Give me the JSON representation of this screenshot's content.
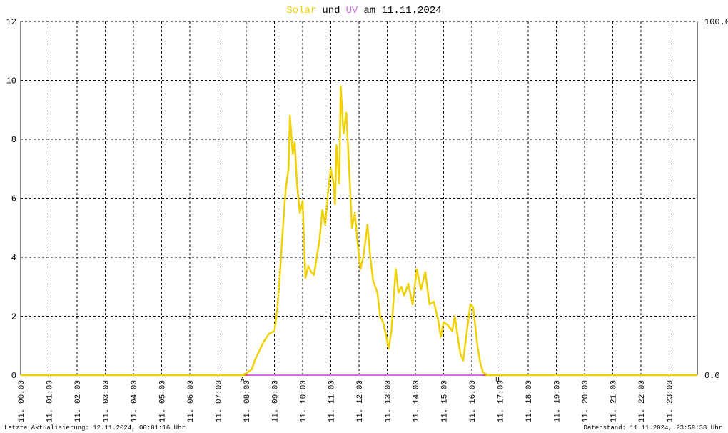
{
  "chart_data": {
    "type": "line",
    "title": [
      "und",
      "am 11.11.2024"
    ],
    "footer_left": "Letzte Aktualisierung: 12.11.2024, 00:01:16 Uhr",
    "footer_right": "Datenstand: 11.11.2024, 23:59:38 Uhr",
    "x": [
      0,
      7.9,
      8.05,
      8.2,
      8.3,
      8.45,
      8.6,
      8.8,
      9.0,
      9.1,
      9.2,
      9.3,
      9.4,
      9.5,
      9.55,
      9.65,
      9.72,
      9.8,
      9.9,
      10.0,
      10.05,
      10.1,
      10.2,
      10.3,
      10.4,
      10.5,
      10.6,
      10.7,
      10.8,
      10.9,
      11.0,
      11.1,
      11.15,
      11.2,
      11.3,
      11.35,
      11.45,
      11.55,
      11.65,
      11.75,
      11.85,
      11.95,
      12.05,
      12.15,
      12.3,
      12.4,
      12.5,
      12.65,
      12.75,
      12.85,
      12.95,
      13.05,
      13.15,
      13.3,
      13.4,
      13.5,
      13.6,
      13.75,
      13.9,
      14.05,
      14.2,
      14.35,
      14.5,
      14.65,
      14.8,
      14.9,
      15.0,
      15.15,
      15.3,
      15.4,
      15.5,
      15.6,
      15.7,
      15.8,
      15.95,
      16.05,
      16.2,
      16.3,
      16.4,
      16.55,
      24
    ],
    "series": [
      {
        "name": "Solar",
        "color": "#f0d000",
        "values": [
          0,
          0,
          0.1,
          0.2,
          0.5,
          0.8,
          1.1,
          1.4,
          1.5,
          2.2,
          3.5,
          5.0,
          6.3,
          7.0,
          8.8,
          7.5,
          7.9,
          6.5,
          5.5,
          5.9,
          4.5,
          3.3,
          3.7,
          3.5,
          3.4,
          4.0,
          4.6,
          5.6,
          5.1,
          6.2,
          7.0,
          6.5,
          5.8,
          7.8,
          6.5,
          9.8,
          8.2,
          8.9,
          7.0,
          5.0,
          5.5,
          4.5,
          3.6,
          4.0,
          5.1,
          4.0,
          3.2,
          2.8,
          2.0,
          1.8,
          1.4,
          0.9,
          1.5,
          3.6,
          2.8,
          3.0,
          2.7,
          3.1,
          2.4,
          3.6,
          2.9,
          3.5,
          2.4,
          2.5,
          1.9,
          1.3,
          1.8,
          1.7,
          1.5,
          2.0,
          1.3,
          0.7,
          0.5,
          1.3,
          2.4,
          2.3,
          1.0,
          0.4,
          0.1,
          0,
          0
        ]
      },
      {
        "name": "UV",
        "color": "#d070e0",
        "axis": "y2",
        "values": [
          null,
          null,
          0,
          0,
          0,
          0,
          0,
          0,
          0,
          0,
          0,
          0,
          0,
          0,
          0,
          0,
          0,
          0,
          0,
          0,
          0,
          0,
          0,
          0,
          0,
          0,
          0,
          0,
          0,
          0,
          0,
          0,
          0,
          0,
          0,
          0,
          0,
          0,
          0,
          0,
          0,
          0,
          0,
          0,
          0,
          0,
          0,
          0,
          0,
          0,
          0,
          0,
          0,
          0,
          0,
          0,
          0,
          0,
          0,
          0,
          0,
          0,
          0,
          0,
          0,
          0,
          0,
          0,
          0,
          0,
          0,
          0,
          0,
          0,
          0,
          0,
          0,
          0,
          0,
          null,
          null
        ]
      }
    ],
    "xlim": [
      0,
      24
    ],
    "xticks": [
      {
        "value": 0,
        "label": "11. 00:00"
      },
      {
        "value": 1,
        "label": "11. 01:00"
      },
      {
        "value": 2,
        "label": "11. 02:00"
      },
      {
        "value": 3,
        "label": "11. 03:00"
      },
      {
        "value": 4,
        "label": "11. 04:00"
      },
      {
        "value": 5,
        "label": "11. 05:00"
      },
      {
        "value": 6,
        "label": "11. 06:00"
      },
      {
        "value": 7,
        "label": "11. 07:00"
      },
      {
        "value": 8,
        "label": "11. 08:00"
      },
      {
        "value": 9,
        "label": "11. 09:00"
      },
      {
        "value": 10,
        "label": "11. 10:00"
      },
      {
        "value": 11,
        "label": "11. 11:00"
      },
      {
        "value": 12,
        "label": "11. 12:00"
      },
      {
        "value": 13,
        "label": "11. 13:00"
      },
      {
        "value": 14,
        "label": "11. 14:00"
      },
      {
        "value": 15,
        "label": "11. 15:00"
      },
      {
        "value": 16,
        "label": "11. 16:00"
      },
      {
        "value": 17,
        "label": "11. 17:00"
      },
      {
        "value": 18,
        "label": "11. 18:00"
      },
      {
        "value": 19,
        "label": "11. 19:00"
      },
      {
        "value": 20,
        "label": "11. 20:00"
      },
      {
        "value": 21,
        "label": "11. 21:00"
      },
      {
        "value": 22,
        "label": "11. 22:00"
      },
      {
        "value": 23,
        "label": "11. 23:00"
      }
    ],
    "ylim": [
      0,
      12
    ],
    "yticks": [
      0,
      2,
      4,
      6,
      8,
      10,
      12
    ],
    "y2lim": [
      0,
      100
    ],
    "y2ticks": [
      {
        "value": 0,
        "label": "0.0"
      },
      {
        "value": 100,
        "label": "100.0"
      }
    ],
    "grid": true,
    "annotations": [
      {
        "text": "A",
        "x": 7.87,
        "color": "#cc0000"
      },
      {
        "text": "U",
        "x": 16.91,
        "color": "#cc0000"
      }
    ]
  }
}
